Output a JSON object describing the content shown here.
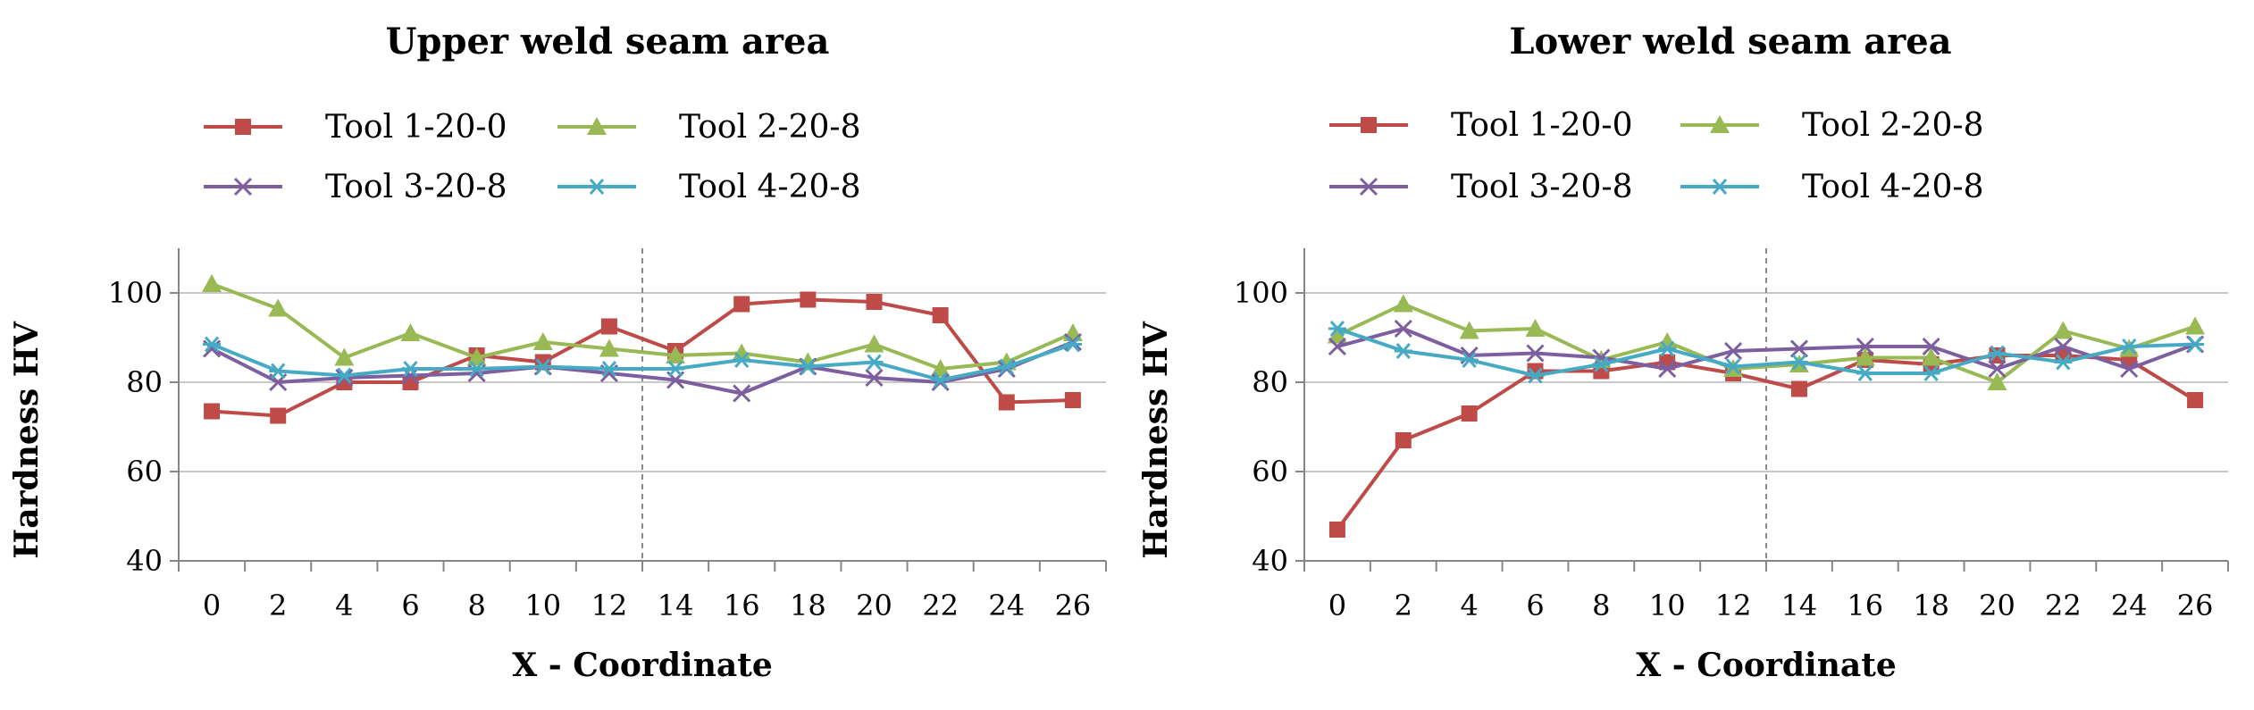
{
  "chart_data": [
    {
      "type": "line",
      "title": "Upper weld seam area",
      "xlabel": "X - Coordinate",
      "ylabel": "Hardness HV",
      "x": [
        0,
        2,
        4,
        6,
        8,
        10,
        12,
        14,
        16,
        18,
        20,
        22,
        24,
        26
      ],
      "x_tick_labels": [
        "0",
        "2",
        "4",
        "6",
        "8",
        "10",
        "12",
        "14",
        "16",
        "18",
        "20",
        "22",
        "24",
        "26"
      ],
      "y_tick_labels": [
        "40",
        "60",
        "80",
        "100"
      ],
      "ylim": [
        40,
        110
      ],
      "gridlines": [
        40,
        60,
        80,
        100
      ],
      "divider_x": 13,
      "legend_position": "top",
      "series": [
        {
          "name": "Tool 1-20-0",
          "color": "#BE4B48",
          "marker": "square",
          "values": [
            73.5,
            72.5,
            80,
            80,
            86,
            84.5,
            92.5,
            87,
            97.5,
            98.5,
            98,
            95,
            75.5,
            76
          ]
        },
        {
          "name": "Tool 2-20-8",
          "color": "#98B954",
          "marker": "triangle",
          "values": [
            102,
            96.5,
            85.5,
            91,
            85.5,
            89,
            87.5,
            86,
            86.5,
            84.5,
            88.5,
            83,
            84.5,
            91
          ]
        },
        {
          "name": "Tool 3-20-8",
          "color": "#7D5FA0",
          "marker": "x",
          "values": [
            87.5,
            80,
            81,
            81.5,
            82,
            83.5,
            82,
            80.5,
            77.5,
            83.5,
            81,
            80,
            83,
            89
          ]
        },
        {
          "name": "Tool 4-20-8",
          "color": "#46AAC4",
          "marker": "star",
          "values": [
            88.5,
            82.5,
            81.5,
            83,
            83,
            83.5,
            83,
            83,
            85,
            83.5,
            84.5,
            80.5,
            83.5,
            88.5
          ]
        }
      ]
    },
    {
      "type": "line",
      "title": "Lower weld seam area",
      "xlabel": "X - Coordinate",
      "ylabel": "Hardness HV",
      "x": [
        0,
        2,
        4,
        6,
        8,
        10,
        12,
        14,
        16,
        18,
        20,
        22,
        24,
        26
      ],
      "x_tick_labels": [
        "0",
        "2",
        "4",
        "6",
        "8",
        "10",
        "12",
        "14",
        "16",
        "18",
        "20",
        "22",
        "24",
        "26"
      ],
      "y_tick_labels": [
        "40",
        "60",
        "80",
        "100"
      ],
      "ylim": [
        40,
        110
      ],
      "gridlines": [
        40,
        60,
        80,
        100
      ],
      "divider_x": 13,
      "legend_position": "top",
      "series": [
        {
          "name": "Tool 1-20-0",
          "color": "#BE4B48",
          "marker": "square",
          "values": [
            47,
            67,
            73,
            82.5,
            82.5,
            84.5,
            82,
            78.5,
            85,
            84,
            86,
            86,
            85,
            76
          ]
        },
        {
          "name": "Tool 2-20-8",
          "color": "#98B954",
          "marker": "triangle",
          "values": [
            90.5,
            97.5,
            91.5,
            92,
            85,
            89,
            83,
            84,
            85.5,
            85.5,
            80,
            91.5,
            87.5,
            92.5
          ]
        },
        {
          "name": "Tool 3-20-8",
          "color": "#7D5FA0",
          "marker": "x",
          "values": [
            88,
            92,
            86,
            86.5,
            85.5,
            83,
            87,
            87.5,
            88,
            88,
            83,
            88,
            83,
            88.5
          ]
        },
        {
          "name": "Tool 4-20-8",
          "color": "#46AAC4",
          "marker": "star",
          "values": [
            92,
            87,
            85,
            81.5,
            84,
            87.5,
            83.5,
            84.5,
            82,
            82,
            86.5,
            84.5,
            88,
            88.5
          ]
        }
      ]
    }
  ]
}
